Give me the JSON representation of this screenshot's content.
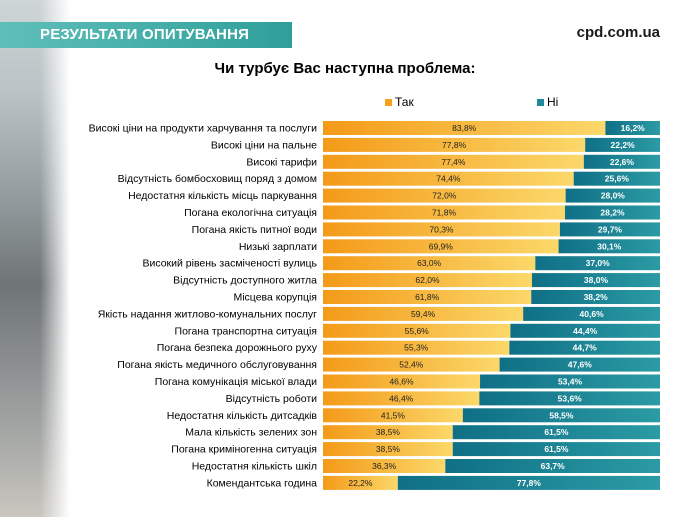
{
  "header": {
    "title": "РЕЗУЛЬТАТИ ОПИТУВАННЯ",
    "site": "cpd.com.ua"
  },
  "colors": {
    "header": "#3aa8a2",
    "tak": "#f7a21c",
    "ni": "#1f8a9b"
  },
  "chart_data": {
    "type": "bar",
    "stacked": true,
    "orientation": "horizontal",
    "title": "Чи турбує Вас наступна проблема:",
    "legend_position": "top",
    "xlim": [
      0,
      100
    ],
    "categories": [
      "Високі ціни на продукти харчування та послуги",
      "Високі ціни на пальне",
      "Високі тарифи",
      "Відсутність бомбосховищ поряд з домом",
      "Недостатня кількість місць паркування",
      "Погана екологічна ситуація",
      "Погана якість питної води",
      "Низькі зарплати",
      "Високий рівень засміченості вулиць",
      "Відсутність доступного житла",
      "Місцева корупція",
      "Якість надання житлово-комунальних послуг",
      "Погана транспортна ситуація",
      "Погана безпека дорожнього руху",
      "Погана якість медичного обслуговування",
      "Погана комунікація міської влади",
      "Відсутність роботи",
      "Недостатня кількість дитсадків",
      "Мала кількість зелених зон",
      "Погана криміногенна ситуація",
      "Недостатня кількість шкіл",
      "Комендантська година"
    ],
    "series": [
      {
        "name": "Так",
        "values": [
          83.8,
          77.8,
          77.4,
          74.4,
          72.0,
          71.8,
          70.3,
          69.9,
          63.0,
          62.0,
          61.8,
          59.4,
          55.6,
          55.3,
          52.4,
          46.6,
          46.4,
          41.5,
          38.5,
          38.5,
          36.3,
          22.2
        ],
        "labels": [
          "83,8%",
          "77,8%",
          "77,4%",
          "74,4%",
          "72,0%",
          "71,8%",
          "70,3%",
          "69,9%",
          "63,0%",
          "62,0%",
          "61,8%",
          "59,4%",
          "55,6%",
          "55,3%",
          "52,4%",
          "46,6%",
          "46,4%",
          "41,5%",
          "38,5%",
          "38,5%",
          "36,3%",
          "22,2%"
        ]
      },
      {
        "name": "Ні",
        "values": [
          16.2,
          22.2,
          22.6,
          25.6,
          28.0,
          28.2,
          29.7,
          30.1,
          37.0,
          38.0,
          38.2,
          40.6,
          44.4,
          44.7,
          47.6,
          53.4,
          53.6,
          58.5,
          61.5,
          61.5,
          63.7,
          77.8
        ],
        "labels": [
          "16,2%",
          "22,2%",
          "22,6%",
          "25,6%",
          "28,0%",
          "28,2%",
          "29,7%",
          "30,1%",
          "37,0%",
          "38,0%",
          "38,2%",
          "40,6%",
          "44,4%",
          "44,7%",
          "47,6%",
          "53,4%",
          "53,6%",
          "58,5%",
          "61,5%",
          "61,5%",
          "63,7%",
          "77,8%"
        ]
      }
    ]
  }
}
